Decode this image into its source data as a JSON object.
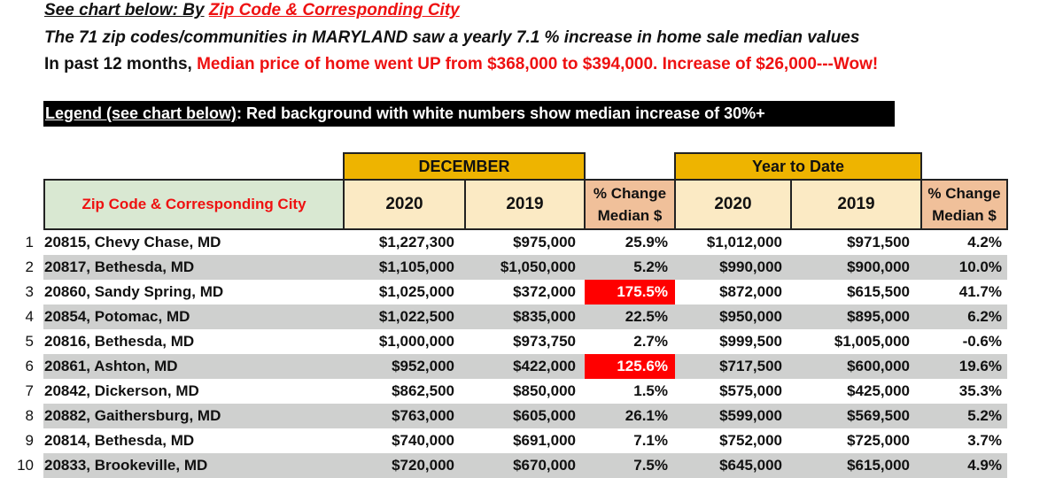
{
  "intro": {
    "line1_prefix": "See chart below:  By",
    "line1_link": "Zip Code & Corresponding City",
    "line2": "The 71 zip codes/communities in MARYLAND saw a yearly 7.1 % increase in home sale median values",
    "line3_prefix": "In past 12 months,",
    "line3_highlight": "Median price of home went UP from $368,000 to $394,000.  Increase of $26,000---Wow!"
  },
  "legend": {
    "label": "Legend (see chart below)",
    "text": ":  Red background with white numbers show median increase of 30%+",
    "highlight_color": "#ff0000"
  },
  "table": {
    "headers": {
      "city": "Zip Code & Corresponding City",
      "december_group": "DECEMBER",
      "ytd_group": "Year to Date",
      "dec_2020": "2020",
      "dec_2019": "2019",
      "dec_pct_line1": "% Change",
      "dec_pct_line2": "Median $",
      "ytd_2020": "2020",
      "ytd_2019": "2019",
      "ytd_pct_line1": "% Change",
      "ytd_pct_line2": "Median $"
    },
    "rows": [
      {
        "rank": "1",
        "city": "20815, Chevy Chase, MD",
        "dec_2020": "$1,227,300",
        "dec_2019": "$975,000",
        "dec_pct": "25.9%",
        "dec_hot": false,
        "ytd_2020": "$1,012,000",
        "ytd_2019": "$971,500",
        "ytd_pct": "4.2%"
      },
      {
        "rank": "2",
        "city": "20817, Bethesda, MD",
        "dec_2020": "$1,105,000",
        "dec_2019": "$1,050,000",
        "dec_pct": "5.2%",
        "dec_hot": false,
        "ytd_2020": "$990,000",
        "ytd_2019": "$900,000",
        "ytd_pct": "10.0%"
      },
      {
        "rank": "3",
        "city": "20860, Sandy Spring, MD",
        "dec_2020": "$1,025,000",
        "dec_2019": "$372,000",
        "dec_pct": "175.5%",
        "dec_hot": true,
        "ytd_2020": "$872,000",
        "ytd_2019": "$615,500",
        "ytd_pct": "41.7%"
      },
      {
        "rank": "4",
        "city": "20854, Potomac, MD",
        "dec_2020": "$1,022,500",
        "dec_2019": "$835,000",
        "dec_pct": "22.5%",
        "dec_hot": false,
        "ytd_2020": "$950,000",
        "ytd_2019": "$895,000",
        "ytd_pct": "6.2%"
      },
      {
        "rank": "5",
        "city": "20816, Bethesda, MD",
        "dec_2020": "$1,000,000",
        "dec_2019": "$973,750",
        "dec_pct": "2.7%",
        "dec_hot": false,
        "ytd_2020": "$999,500",
        "ytd_2019": "$1,005,000",
        "ytd_pct": "-0.6%"
      },
      {
        "rank": "6",
        "city": "20861, Ashton, MD",
        "dec_2020": "$952,000",
        "dec_2019": "$422,000",
        "dec_pct": "125.6%",
        "dec_hot": true,
        "ytd_2020": "$717,500",
        "ytd_2019": "$600,000",
        "ytd_pct": "19.6%"
      },
      {
        "rank": "7",
        "city": "20842, Dickerson, MD",
        "dec_2020": "$862,500",
        "dec_2019": "$850,000",
        "dec_pct": "1.5%",
        "dec_hot": false,
        "ytd_2020": "$575,000",
        "ytd_2019": "$425,000",
        "ytd_pct": "35.3%"
      },
      {
        "rank": "8",
        "city": "20882, Gaithersburg, MD",
        "dec_2020": "$763,000",
        "dec_2019": "$605,000",
        "dec_pct": "26.1%",
        "dec_hot": false,
        "ytd_2020": "$599,000",
        "ytd_2019": "$569,500",
        "ytd_pct": "5.2%"
      },
      {
        "rank": "9",
        "city": "20814, Bethesda, MD",
        "dec_2020": "$740,000",
        "dec_2019": "$691,000",
        "dec_pct": "7.1%",
        "dec_hot": false,
        "ytd_2020": "$752,000",
        "ytd_2019": "$725,000",
        "ytd_pct": "3.7%"
      },
      {
        "rank": "10",
        "city": "20833, Brookeville, MD",
        "dec_2020": "$720,000",
        "dec_2019": "$670,000",
        "dec_pct": "7.5%",
        "dec_hot": false,
        "ytd_2020": "$645,000",
        "ytd_2019": "$615,000",
        "ytd_pct": "4.9%"
      }
    ]
  }
}
